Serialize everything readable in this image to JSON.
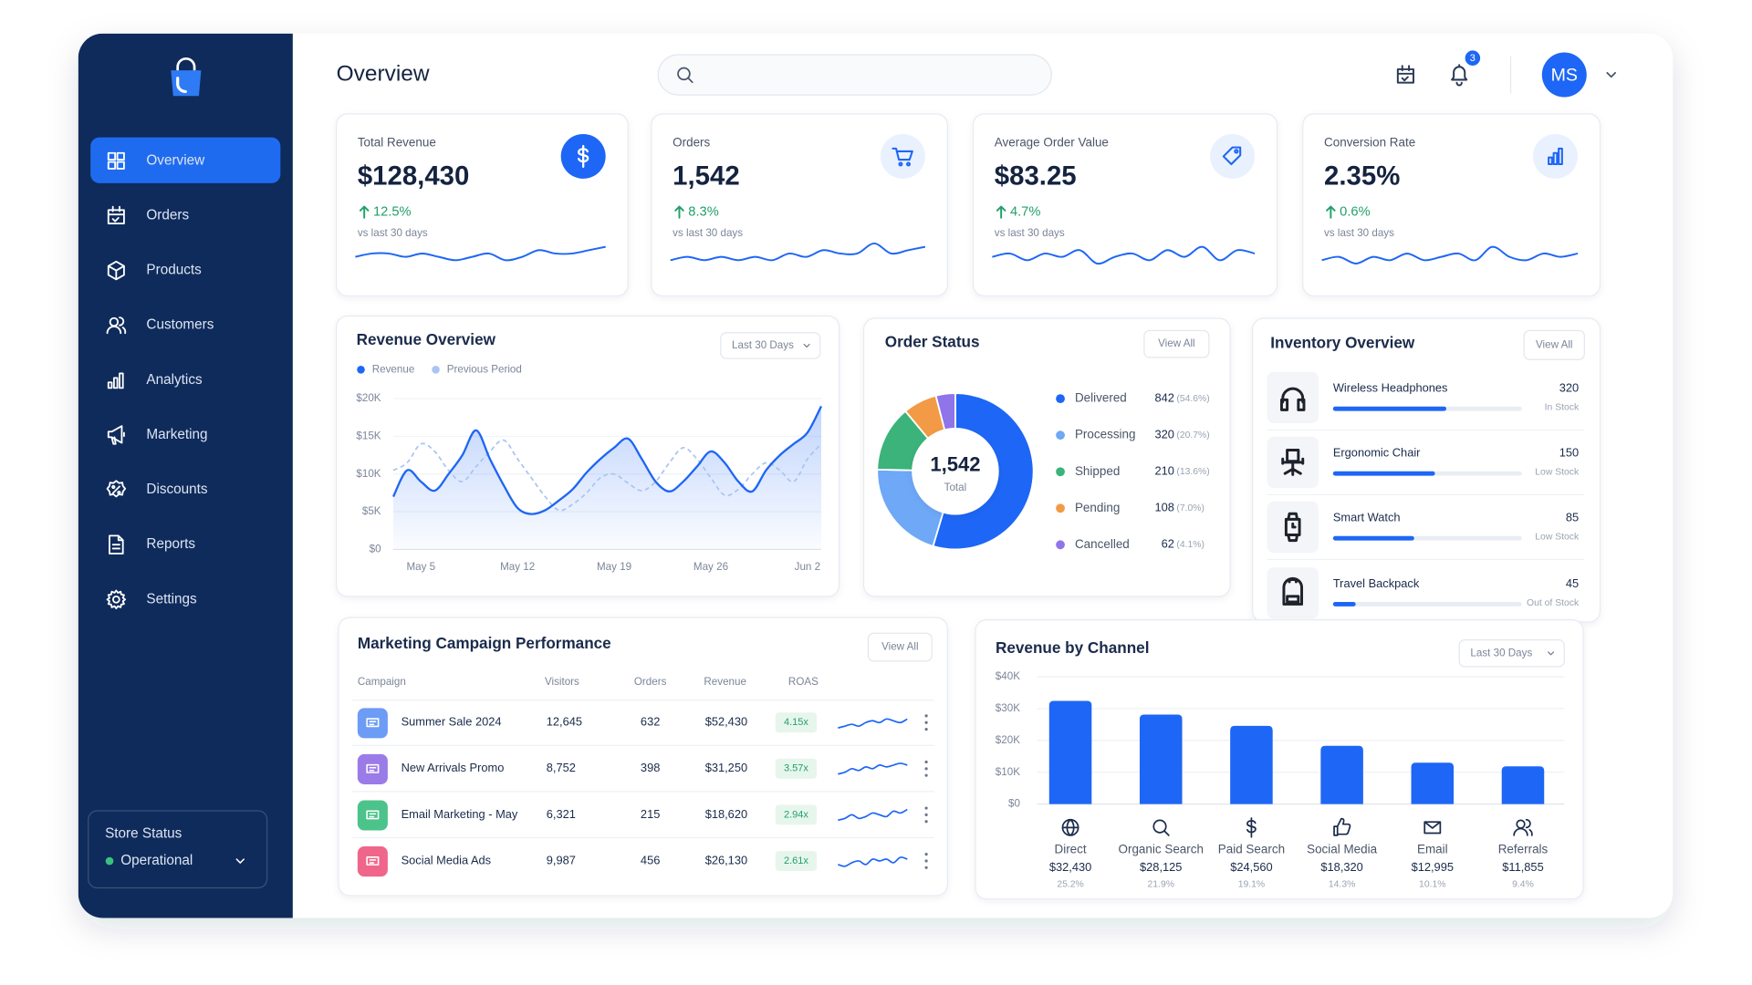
{
  "sidebar": {
    "nav": [
      "Overview",
      "Orders",
      "Products",
      "Customers",
      "Analytics",
      "Marketing",
      "Discounts",
      "Reports",
      "Settings"
    ],
    "active": 0,
    "store_status": {
      "title": "Store Status",
      "status": "Operational"
    }
  },
  "header": {
    "title": "Overview",
    "notifications": 3,
    "avatar": "MS"
  },
  "kpis": [
    {
      "label": "Total Revenue",
      "value": "$128,430",
      "change": "12.5%",
      "note": "vs last 30 days",
      "trend": [
        4,
        5,
        5,
        4,
        5,
        4,
        3,
        4,
        5,
        3,
        4,
        6,
        5,
        5,
        6,
        7
      ]
    },
    {
      "label": "Orders",
      "value": "1,542",
      "change": "8.3%",
      "note": "vs last 30 days",
      "trend": [
        3,
        4,
        3,
        4,
        3,
        4,
        3,
        5,
        4,
        6,
        5,
        5,
        8,
        5,
        6,
        7
      ]
    },
    {
      "label": "Average Order Value",
      "value": "$83.25",
      "change": "4.7%",
      "note": "vs last 30 days",
      "trend": [
        4,
        5,
        3,
        5,
        4,
        6,
        2,
        4,
        5,
        3,
        6,
        4,
        7,
        3,
        6,
        5
      ]
    },
    {
      "label": "Conversion Rate",
      "value": "2.35%",
      "change": "0.6%",
      "note": "vs last 30 days",
      "trend": [
        3,
        4,
        2,
        4,
        3,
        5,
        3,
        4,
        5,
        3,
        7,
        4,
        3,
        5,
        4,
        5
      ]
    }
  ],
  "revenue_overview": {
    "type": "line",
    "title": "Revenue Overview",
    "period": "Last 30 Days",
    "categories": [
      null,
      null,
      "May 5",
      null,
      null,
      null,
      null,
      null,
      null,
      "May 12",
      null,
      null,
      null,
      null,
      null,
      null,
      "May 19",
      null,
      null,
      null,
      null,
      null,
      null,
      "May 26",
      null,
      null,
      null,
      null,
      null,
      null,
      "Jun 2",
      null
    ],
    "series": [
      {
        "name": "Revenue",
        "color": "#1e66f5",
        "values": [
          7000,
          10500,
          9000,
          7800,
          10000,
          12500,
          15800,
          12000,
          8500,
          5500,
          4700,
          5200,
          6500,
          8000,
          10200,
          12000,
          13500,
          14700,
          12000,
          9000,
          7700,
          9000,
          11000,
          13000,
          11500,
          9000,
          7700,
          10500,
          12500,
          14000,
          15500,
          19000
        ]
      },
      {
        "name": "Previous Period",
        "color": "#a9c4f2",
        "values": [
          10500,
          11500,
          14000,
          13000,
          10500,
          9000,
          11000,
          13000,
          14500,
          12000,
          9500,
          7000,
          5200,
          6000,
          7500,
          9500,
          10000,
          8800,
          7800,
          9000,
          11500,
          13500,
          12000,
          9500,
          7200,
          8000,
          10000,
          11500,
          10500,
          9000,
          12000,
          14000
        ]
      }
    ],
    "ylim": [
      0,
      20000
    ],
    "yticks": [
      {
        "value": 0,
        "label": "$0"
      },
      {
        "value": 5000,
        "label": "$5K"
      },
      {
        "value": 10000,
        "label": "$10K"
      },
      {
        "value": 15000,
        "label": "$15K"
      },
      {
        "value": 20000,
        "label": "$20K"
      }
    ],
    "grid": true
  },
  "order_status": {
    "type": "donut",
    "title": "Order Status",
    "action": "View All",
    "total": "1,542",
    "total_caption": "Total",
    "categories": [
      "Delivered",
      "Processing",
      "Shipped",
      "Pending",
      "Cancelled"
    ],
    "values": [
      842,
      320,
      210,
      108,
      62
    ],
    "percent_labels": [
      "(54.6%)",
      "(20.7%)",
      "(13.6%)",
      "(7.0%)",
      "(4.1%)"
    ],
    "colors": [
      "#1e66f5",
      "#6ea8f7",
      "#3bb37a",
      "#f29a46",
      "#8f74ea"
    ]
  },
  "inventory": {
    "title": "Inventory Overview",
    "action": "View All",
    "items": [
      {
        "name": "Wireless Headphones",
        "quantity": 320,
        "status": "In Stock",
        "status_color": "#1e66f5",
        "level": 60
      },
      {
        "name": "Ergonomic Chair",
        "quantity": 150,
        "status": "Low Stock",
        "status_color": "#f08a24",
        "level": 54
      },
      {
        "name": "Smart Watch",
        "quantity": 85,
        "status": "Low Stock",
        "status_color": "#f08a24",
        "level": 43
      },
      {
        "name": "Travel Backpack",
        "quantity": 45,
        "status": "Out of Stock",
        "status_color": "#e5484d",
        "level": 12
      }
    ]
  },
  "marketing": {
    "title": "Marketing Campaign Performance",
    "action": "View All",
    "columns": [
      "Campaign",
      "Visitors",
      "Orders",
      "Revenue",
      "ROAS"
    ],
    "rows": [
      {
        "name": "Summer Sale 2024",
        "visitors": "12,645",
        "orders": 632,
        "revenue": "$52,430",
        "roas": "4.15x",
        "color": "#6c9cf5",
        "trend": [
          2,
          3,
          4,
          3,
          5,
          6,
          5,
          7,
          6,
          5,
          7
        ]
      },
      {
        "name": "New Arrivals Promo",
        "visitors": "8,752",
        "orders": 398,
        "revenue": "$31,250",
        "roas": "3.57x",
        "color": "#9b7be8",
        "trend": [
          2,
          3,
          5,
          4,
          6,
          5,
          7,
          6,
          7,
          8,
          7
        ]
      },
      {
        "name": "Email Marketing - May",
        "visitors": "6,321",
        "orders": 215,
        "revenue": "$18,620",
        "roas": "2.94x",
        "color": "#4cc38a",
        "trend": [
          2,
          3,
          5,
          3,
          4,
          6,
          5,
          4,
          7,
          6,
          8
        ]
      },
      {
        "name": "Social Media Ads",
        "visitors": "9,987",
        "orders": 456,
        "revenue": "$26,130",
        "roas": "2.61x",
        "color": "#f0658a",
        "trend": [
          3,
          2,
          4,
          5,
          3,
          6,
          5,
          6,
          4,
          7,
          6
        ]
      }
    ]
  },
  "channels": {
    "type": "bar",
    "title": "Revenue by Channel",
    "period": "Last 30 Days",
    "categories": [
      "Direct",
      "Organic Search",
      "Paid Search",
      "Social Media",
      "Email",
      "Referrals"
    ],
    "values": [
      32430,
      28125,
      24560,
      18320,
      12995,
      11855
    ],
    "value_labels": [
      "$32,430",
      "$28,125",
      "$24,560",
      "$18,320",
      "$12,995",
      "$11,855"
    ],
    "share_labels": [
      "25.2%",
      "21.9%",
      "19.1%",
      "14.3%",
      "10.1%",
      "9.4%"
    ],
    "color": "#1e66f5",
    "ylim": [
      0,
      40000
    ],
    "yticks": [
      {
        "value": 0,
        "label": "$0"
      },
      {
        "value": 10000,
        "label": "$10K"
      },
      {
        "value": 20000,
        "label": "$20K"
      },
      {
        "value": 30000,
        "label": "$30K"
      },
      {
        "value": 40000,
        "label": "$40K"
      }
    ],
    "grid": true
  }
}
